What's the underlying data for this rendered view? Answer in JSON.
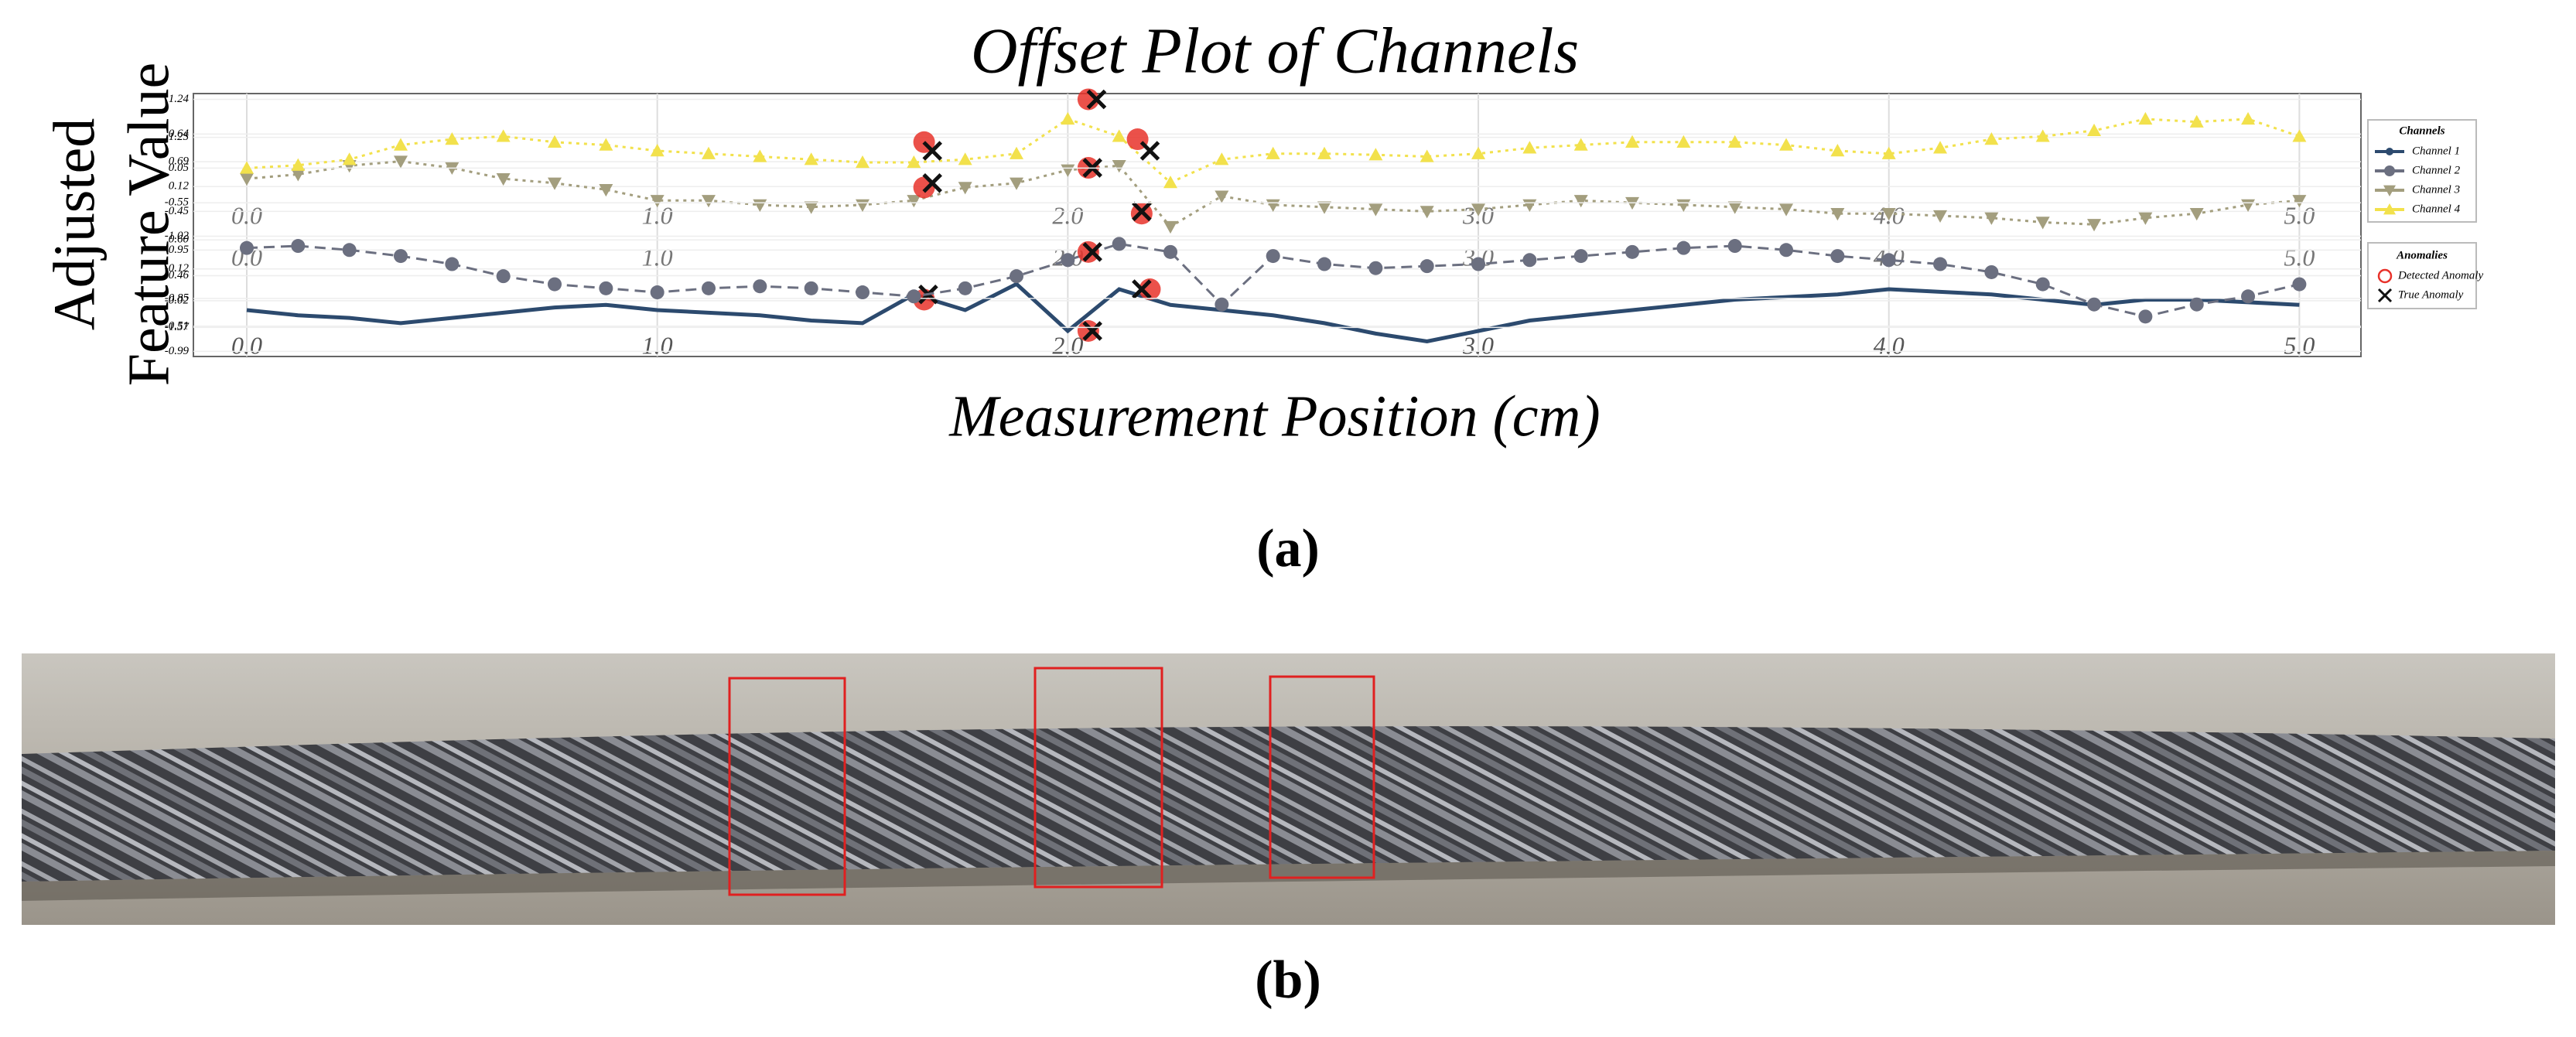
{
  "chart_data": {
    "type": "line",
    "title": "Offset Plot of Channels",
    "xlabel": "Measurement Position (cm)",
    "ylabel": [
      "Adjusted",
      "Feature Value"
    ],
    "caption_a": "(a)",
    "caption_b": "(b)",
    "xlim": [
      -0.13,
      5.15
    ],
    "xticks": [
      {
        "value": 0,
        "label": "0.0"
      },
      {
        "value": 1,
        "label": "1.0"
      },
      {
        "value": 2,
        "label": "2.0"
      },
      {
        "value": 3,
        "label": "3.0"
      },
      {
        "value": 4,
        "label": "4.0"
      },
      {
        "value": 5,
        "label": "5.0"
      }
    ],
    "grid": true,
    "legend_title": "Channels",
    "anomaly_legend": {
      "title": "Anomalies",
      "detected": "Detected Anomaly",
      "true": "True Anomaly"
    },
    "x": [
      0,
      0.125,
      0.25,
      0.375,
      0.5,
      0.625,
      0.75,
      0.875,
      1,
      1.125,
      1.25,
      1.375,
      1.5,
      1.625,
      1.75,
      1.875,
      2,
      2.125,
      2.25,
      2.375,
      2.5,
      2.625,
      2.75,
      2.875,
      3,
      3.125,
      3.25,
      3.375,
      3.5,
      3.625,
      3.75,
      3.875,
      4,
      4.125,
      4.25,
      4.375,
      4.5,
      4.625,
      4.75,
      4.875,
      5
    ],
    "series": [
      {
        "name": "Channel 1",
        "color": "#2c4a6e",
        "marker": "line",
        "ylim": [
          -1.0,
          1.0
        ],
        "yticks": [
          -0.99,
          -0.51,
          -0.02,
          0.46,
          0.95
        ],
        "values": [
          -0.2,
          -0.3,
          -0.35,
          -0.45,
          -0.35,
          -0.25,
          -0.15,
          -0.1,
          -0.2,
          -0.25,
          -0.3,
          -0.4,
          -0.45,
          0.1,
          -0.2,
          0.3,
          -0.6,
          0.2,
          -0.1,
          -0.2,
          -0.3,
          -0.45,
          -0.65,
          -0.8,
          -0.6,
          -0.4,
          -0.3,
          -0.2,
          -0.1,
          0.0,
          0.05,
          0.1,
          0.2,
          0.15,
          0.1,
          0.0,
          -0.1,
          0.0,
          0.0,
          -0.05,
          -0.1
        ],
        "detected": {
          "x": [
            1.65,
            2.05,
            2.2
          ],
          "values": [
            0.0,
            -0.6,
            0.2
          ]
        },
        "true": {
          "x": [
            1.66,
            2.06,
            2.18
          ],
          "values": [
            0.1,
            -0.6,
            0.2
          ]
        }
      },
      {
        "name": "Channel 2",
        "color": "#6b6f80",
        "marker": "circle",
        "ylim": [
          -1.6,
          0.7
        ],
        "yticks": [
          -1.57,
          -0.85,
          -0.12,
          {
            "value": 0.6,
            "label": "0.60"
          }
        ],
        "values": [
          0.4,
          0.45,
          0.35,
          0.2,
          0.0,
          -0.3,
          -0.5,
          -0.6,
          -0.7,
          -0.6,
          -0.55,
          -0.6,
          -0.7,
          -0.8,
          -0.6,
          -0.3,
          0.1,
          0.5,
          0.3,
          -1.0,
          0.2,
          0.0,
          -0.1,
          -0.05,
          0.0,
          0.1,
          0.2,
          0.3,
          0.4,
          0.45,
          0.35,
          0.2,
          0.1,
          0.0,
          -0.2,
          -0.5,
          -1.0,
          -1.3,
          -1.0,
          -0.8,
          -0.5
        ],
        "detected": {
          "x": [
            2.05
          ],
          "values": [
            0.3
          ]
        },
        "true": {
          "x": [
            2.06
          ],
          "values": [
            0.3
          ]
        }
      },
      {
        "name": "Channel 3",
        "color": "#a39e7e",
        "marker": "tri-down",
        "ylim": [
          -1.1,
          1.35
        ],
        "yticks": [
          -1.02,
          -0.45,
          0.12,
          0.69,
          1.25
        ],
        "values": [
          0.3,
          0.4,
          0.6,
          0.7,
          0.55,
          0.3,
          0.2,
          0.05,
          -0.2,
          -0.2,
          -0.3,
          -0.35,
          -0.3,
          -0.2,
          0.1,
          0.2,
          0.5,
          0.6,
          -0.8,
          -0.1,
          -0.3,
          -0.35,
          -0.4,
          -0.45,
          -0.4,
          -0.3,
          -0.2,
          -0.25,
          -0.3,
          -0.35,
          -0.4,
          -0.5,
          -0.5,
          -0.55,
          -0.6,
          -0.7,
          -0.75,
          -0.6,
          -0.5,
          -0.3,
          -0.2
        ],
        "detected": {
          "x": [
            1.65,
            2.05,
            2.18
          ],
          "values": [
            0.1,
            0.55,
            -0.5
          ]
        },
        "true": {
          "x": [
            1.67,
            2.06,
            2.18
          ],
          "values": [
            0.2,
            0.55,
            -0.45
          ]
        }
      },
      {
        "name": "Channel 4",
        "color": "#f2e14c",
        "marker": "tri-up",
        "ylim": [
          -0.6,
          1.3
        ],
        "yticks": [
          -0.55,
          0.05,
          0.64,
          1.24
        ],
        "values": [
          0.05,
          0.1,
          0.2,
          0.45,
          0.55,
          0.6,
          0.5,
          0.45,
          0.35,
          0.3,
          0.25,
          0.2,
          0.15,
          0.15,
          0.2,
          0.3,
          0.9,
          0.6,
          -0.2,
          0.2,
          0.3,
          0.3,
          0.28,
          0.25,
          0.3,
          0.4,
          0.45,
          0.5,
          0.5,
          0.5,
          0.45,
          0.35,
          0.3,
          0.4,
          0.55,
          0.6,
          0.7,
          0.9,
          0.85,
          0.9,
          0.6
        ],
        "detected": {
          "x": [
            1.65,
            2.05,
            2.17
          ],
          "values": [
            0.5,
            1.24,
            0.55
          ]
        },
        "true": {
          "x": [
            1.67,
            2.07,
            2.2
          ],
          "values": [
            0.35,
            1.24,
            0.35
          ]
        }
      }
    ]
  }
}
